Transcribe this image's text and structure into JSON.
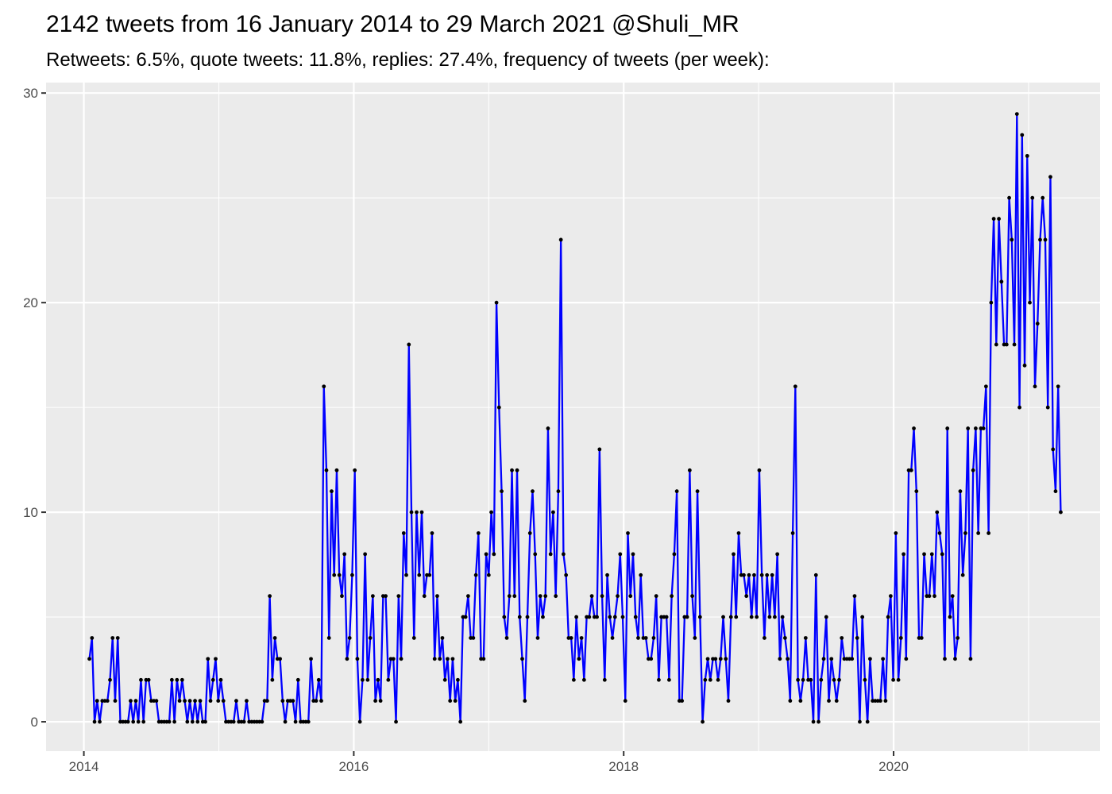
{
  "chart_data": {
    "type": "line",
    "title": "2142 tweets from 16 January 2014 to 29 March 2021 @Shuli_MR",
    "subtitle": "Retweets: 6.5%, quote tweets: 11.8%, replies: 27.4%, frequency of tweets (per week):",
    "xlabel": "",
    "ylabel": "",
    "x_ticks": [
      "2014",
      "2016",
      "2018",
      "2020"
    ],
    "y_ticks": [
      "0",
      "10",
      "20",
      "30"
    ],
    "xlim": [
      2013.72,
      2021.53
    ],
    "ylim": [
      -1.4,
      30.5
    ],
    "grid": true,
    "legend": "none",
    "line_color": "#0000ff",
    "point_color": "#000000",
    "panel_color": "#ebebeb",
    "series": [
      {
        "values": [
          3,
          4,
          0,
          1,
          0,
          1,
          1,
          1,
          2,
          4,
          1,
          4,
          0,
          0,
          0,
          0,
          1,
          0,
          1,
          0,
          2,
          0,
          2,
          2,
          1,
          1,
          1,
          0,
          0,
          0,
          0,
          0,
          2,
          0,
          2,
          1,
          2,
          1,
          0,
          1,
          0,
          1,
          0,
          1,
          0,
          0,
          3,
          1,
          2,
          3,
          1,
          2,
          1,
          0,
          0,
          0,
          0,
          1,
          0,
          0,
          0,
          1,
          0,
          0,
          0,
          0,
          0,
          0,
          1,
          1,
          6,
          2,
          4,
          3,
          3,
          1,
          0,
          1,
          1,
          1,
          0,
          2,
          0,
          0,
          0,
          0,
          3,
          1,
          1,
          2,
          1,
          16,
          12,
          4,
          11,
          7,
          12,
          7,
          6,
          8,
          3,
          4,
          7,
          12,
          3,
          0,
          2,
          8,
          2,
          4,
          6,
          1,
          2,
          1,
          6,
          6,
          2,
          3,
          3,
          0,
          6,
          3,
          9,
          7,
          18,
          10,
          4,
          10,
          7,
          10,
          6,
          7,
          7,
          9,
          3,
          6,
          3,
          4,
          2,
          3,
          1,
          3,
          1,
          2,
          0,
          5,
          5,
          6,
          4,
          4,
          7,
          9,
          3,
          3,
          8,
          7,
          10,
          8,
          20,
          15,
          11,
          5,
          4,
          6,
          12,
          6,
          12,
          5,
          3,
          1,
          5,
          9,
          11,
          8,
          4,
          6,
          5,
          6,
          14,
          8,
          10,
          6,
          11,
          23,
          8,
          7,
          4,
          4,
          2,
          5,
          3,
          4,
          2,
          5,
          5,
          6,
          5,
          5,
          13,
          6,
          2,
          7,
          5,
          4,
          5,
          6,
          8,
          5,
          1,
          9,
          6,
          8,
          5,
          4,
          7,
          4,
          4,
          3,
          3,
          4,
          6,
          2,
          5,
          5,
          5,
          2,
          6,
          8,
          11,
          1,
          1,
          5,
          5,
          12,
          6,
          4,
          11,
          5,
          0,
          2,
          3,
          2,
          3,
          3,
          2,
          3,
          5,
          3,
          1,
          5,
          8,
          5,
          9,
          7,
          7,
          6,
          7,
          5,
          7,
          5,
          12,
          7,
          4,
          7,
          5,
          7,
          5,
          8,
          3,
          5,
          4,
          3,
          1,
          9,
          16,
          2,
          1,
          2,
          4,
          2,
          2,
          0,
          7,
          0,
          2,
          3,
          5,
          1,
          3,
          2,
          1,
          2,
          4,
          3,
          3,
          3,
          3,
          6,
          4,
          0,
          5,
          2,
          0,
          3,
          1,
          1,
          1,
          1,
          3,
          1,
          5,
          6,
          2,
          9,
          2,
          4,
          8,
          3,
          12,
          12,
          14,
          11,
          4,
          4,
          8,
          6,
          6,
          8,
          6,
          10,
          9,
          8,
          3,
          14,
          5,
          6,
          3,
          4,
          11,
          7,
          9,
          14,
          3,
          12,
          14,
          9,
          14,
          14,
          16,
          9,
          20,
          24,
          18,
          24,
          21,
          18,
          18,
          25,
          23,
          18,
          29,
          15,
          28,
          17,
          27,
          20,
          25,
          16,
          19,
          23,
          25,
          23,
          15,
          26,
          13,
          11,
          16,
          10
        ]
      }
    ]
  }
}
